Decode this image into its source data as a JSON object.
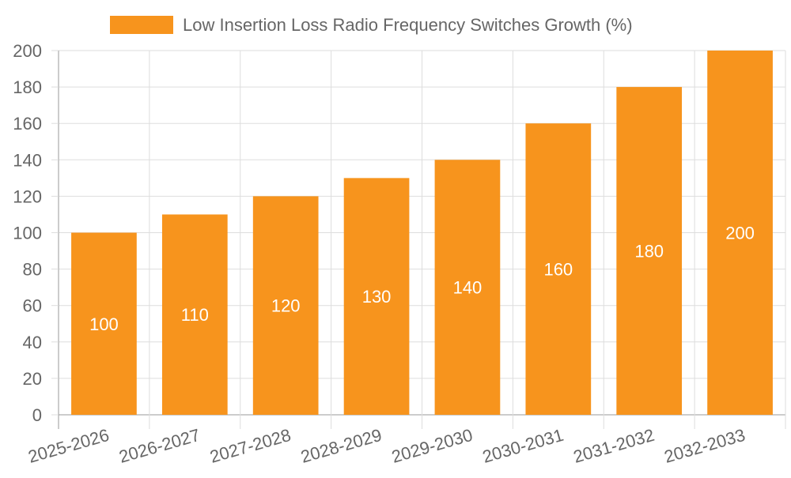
{
  "chart_data": {
    "type": "bar",
    "categories": [
      "2025-2026",
      "2026-2027",
      "2027-2028",
      "2028-2029",
      "2029-2030",
      "2030-2031",
      "2031-2032",
      "2032-2033"
    ],
    "series": [
      {
        "name": "Low Insertion Loss Radio Frequency Switches Growth (%)",
        "values": [
          100,
          110,
          120,
          130,
          140,
          160,
          180,
          200
        ],
        "color": "#f7941d"
      }
    ],
    "title": "",
    "xlabel": "",
    "ylabel": "",
    "ylim": [
      0,
      200
    ],
    "yticks": [
      0,
      20,
      40,
      60,
      80,
      100,
      120,
      140,
      160,
      180,
      200
    ],
    "grid": true,
    "legend_position": "top-center",
    "data_labels": [
      "100",
      "110",
      "120",
      "130",
      "140",
      "160",
      "180",
      "200"
    ],
    "data_label_color": "#ffffff",
    "text_color": "#666666",
    "grid_color": "#dddddd",
    "axis_color": "#999999"
  }
}
